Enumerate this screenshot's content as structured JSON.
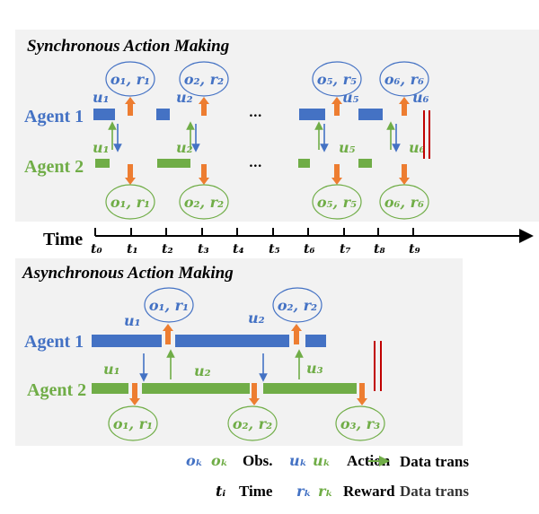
{
  "colors": {
    "agent1": "#4472C4",
    "agent2": "#70AD47",
    "transfer": "#ED7D31",
    "end_marker": "#C00000",
    "panel": "#F2F2F2"
  },
  "sync": {
    "title": "Synchronous Action Making",
    "agent1_label": "Agent 1",
    "agent2_label": "Agent 2",
    "ellipsis": "...",
    "agent1_actions": [
      "u₁",
      "u₂",
      "u₅",
      "u₆"
    ],
    "agent2_actions": [
      "u₁",
      "u₂",
      "u₅",
      "u₆"
    ],
    "agent1_obs": [
      "o₁, r₁",
      "o₂, r₂",
      "o₅, r₅",
      "o₆, r₆"
    ],
    "agent2_obs": [
      "o₁, r₁",
      "o₂, r₂",
      "o₅, r₅",
      "o₆, r₆"
    ]
  },
  "time_axis": {
    "label": "Time",
    "ticks": [
      "t₀",
      "t₁",
      "t₂",
      "t₃",
      "t₄",
      "t₅",
      "t₆",
      "t₇",
      "t₈",
      "t₉"
    ]
  },
  "async": {
    "title": "Asynchronous Action Making",
    "agent1_label": "Agent 1",
    "agent2_label": "Agent 2",
    "agent1_actions": [
      "u₁",
      "u₂"
    ],
    "agent2_actions": [
      "u₁",
      "u₂",
      "u₃"
    ],
    "agent1_obs": [
      "o₁, r₁",
      "o₂, r₂"
    ],
    "agent2_obs": [
      "o₁, r₁",
      "o₂, r₂",
      "o₃, r₃"
    ]
  },
  "legend": {
    "obs_symbol": "oₖ",
    "obs_label": "Obs.",
    "action_symbol": "uₖ",
    "action_label": "Action",
    "time_symbol": "tᵢ",
    "time_label": "Time",
    "reward_symbol": "rₖ",
    "reward_label": "Reward",
    "data_trans_green": "Data trans",
    "data_trans_blue": "Data trans"
  }
}
